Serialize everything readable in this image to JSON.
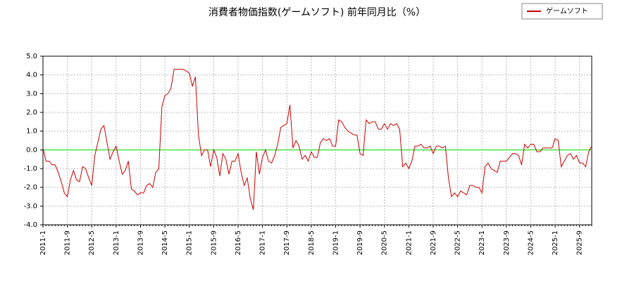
{
  "chart_data": {
    "type": "line",
    "title": "消費者物価指数(ゲームソフト) 前年同月比（%）",
    "categories": [
      "2011-1",
      null,
      null,
      null,
      null,
      null,
      null,
      null,
      "2011-9",
      null,
      null,
      null,
      null,
      null,
      null,
      null,
      "2012-5",
      null,
      null,
      null,
      null,
      null,
      null,
      null,
      "2013-1",
      null,
      null,
      null,
      null,
      null,
      null,
      null,
      "2013-9",
      null,
      null,
      null,
      null,
      null,
      null,
      null,
      "2014-5",
      null,
      null,
      null,
      null,
      null,
      null,
      null,
      "2015-1",
      null,
      null,
      null,
      null,
      null,
      null,
      null,
      "2015-9",
      null,
      null,
      null,
      null,
      null,
      null,
      null,
      "2016-5",
      null,
      null,
      null,
      null,
      null,
      null,
      null,
      "2017-1",
      null,
      null,
      null,
      null,
      null,
      null,
      null,
      "2017-9",
      null,
      null,
      null,
      null,
      null,
      null,
      null,
      "2018-5",
      null,
      null,
      null,
      null,
      null,
      null,
      null,
      "2019-1",
      null,
      null,
      null,
      null,
      null,
      null,
      null,
      "2019-9",
      null,
      null,
      null,
      null,
      null,
      null,
      null,
      "2020-5",
      null,
      null,
      null,
      null,
      null,
      null,
      null,
      "2021-1",
      null,
      null,
      null,
      null,
      null,
      null,
      null,
      "2021-9",
      null,
      null,
      null,
      null,
      null,
      null,
      null,
      "2022-5",
      null,
      null,
      null,
      null,
      null,
      null,
      null,
      "2023-1",
      null,
      null,
      null,
      null,
      null,
      null,
      null,
      "2023-9",
      null,
      null,
      null,
      null,
      null,
      null,
      null,
      "2024-5",
      null,
      null,
      null,
      null,
      null,
      null,
      null,
      "2025-1",
      null,
      null,
      null,
      null,
      null,
      null,
      null,
      "2025-9",
      null,
      null,
      null,
      null
    ],
    "series": [
      {
        "name": "ゲームソフト",
        "color": "#cc0000",
        "values": [
          0.1,
          -0.6,
          -0.6,
          -0.8,
          -0.8,
          -1.2,
          -1.7,
          -2.3,
          -2.5,
          -1.6,
          -1.1,
          -1.6,
          -1.7,
          -0.9,
          -1.0,
          -1.5,
          -1.9,
          -0.3,
          0.4,
          1.1,
          1.3,
          0.4,
          -0.5,
          -0.1,
          0.2,
          -0.6,
          -1.3,
          -1.1,
          -0.6,
          -2.1,
          -2.2,
          -2.4,
          -2.3,
          -2.3,
          -1.9,
          -1.8,
          -2.0,
          -1.2,
          -1.0,
          2.3,
          2.9,
          3.0,
          3.3,
          4.3,
          4.3,
          4.3,
          4.3,
          4.2,
          4.1,
          3.4,
          3.9,
          0.8,
          -0.3,
          0.0,
          0.0,
          -0.9,
          0.0,
          -0.4,
          -1.4,
          -0.2,
          -0.5,
          -1.3,
          -0.6,
          -0.6,
          -0.2,
          -1.2,
          -1.9,
          -1.5,
          -2.6,
          -3.2,
          -0.1,
          -1.3,
          -0.4,
          0.0,
          -0.6,
          -0.7,
          -0.3,
          0.3,
          1.2,
          1.3,
          1.4,
          2.4,
          0.1,
          0.5,
          0.2,
          -0.5,
          -0.3,
          -0.6,
          -0.1,
          -0.4,
          -0.4,
          0.4,
          0.6,
          0.5,
          0.6,
          0.2,
          0.2,
          1.6,
          1.5,
          1.2,
          1.0,
          0.9,
          0.8,
          0.8,
          -0.2,
          -0.3,
          1.6,
          1.4,
          1.5,
          1.5,
          1.1,
          1.1,
          1.4,
          1.1,
          1.4,
          1.3,
          1.4,
          1.1,
          -0.9,
          -0.7,
          -1.0,
          -0.6,
          0.2,
          0.2,
          0.3,
          0.1,
          0.1,
          0.2,
          -0.2,
          0.2,
          0.2,
          0.1,
          0.2,
          -1.5,
          -2.5,
          -2.3,
          -2.5,
          -2.2,
          -2.3,
          -2.4,
          -1.9,
          -1.9,
          -2.0,
          -2.0,
          -2.3,
          -0.9,
          -0.7,
          -1.0,
          -1.1,
          -1.2,
          -0.6,
          -0.6,
          -0.6,
          -0.4,
          -0.2,
          -0.2,
          -0.3,
          -0.8,
          0.3,
          0.1,
          0.3,
          0.3,
          -0.1,
          -0.1,
          0.1,
          0.1,
          0.1,
          0.1,
          0.6,
          0.5,
          -0.9,
          -0.6,
          -0.3,
          -0.2,
          -0.5,
          -0.3,
          -0.7,
          -0.7,
          -0.9,
          -0.1,
          0.2
        ]
      }
    ],
    "ylim": [
      -4,
      5
    ],
    "yticks": [
      {
        "value": -4,
        "label": "-4.0"
      },
      {
        "value": -3,
        "label": "-3.0"
      },
      {
        "value": -2,
        "label": "-2.0"
      },
      {
        "value": -1,
        "label": "-1.0"
      },
      {
        "value": 0,
        "label": "0.0"
      },
      {
        "value": 1,
        "label": "1.0"
      },
      {
        "value": 2,
        "label": "2.0"
      },
      {
        "value": 3,
        "label": "3.0"
      },
      {
        "value": 4,
        "label": "4.0"
      },
      {
        "value": 5,
        "label": "5.0"
      }
    ],
    "grid": true,
    "hline": 0,
    "hline_color": "#00dd00",
    "legend": "top-right"
  }
}
